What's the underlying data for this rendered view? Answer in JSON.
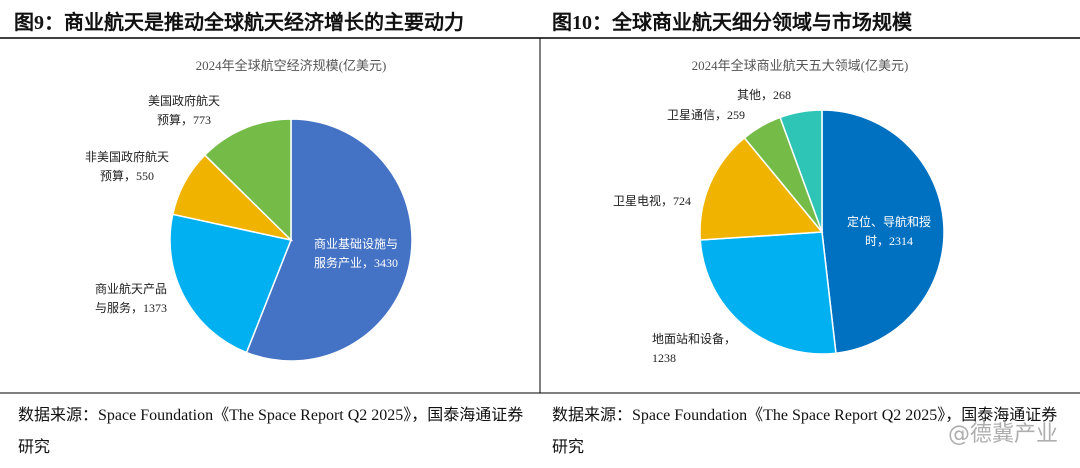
{
  "figures": [
    {
      "title": "图9：商业航天是推动全球航天经济增长的主要动力",
      "source": "数据来源：Space Foundation《The Space Report Q2 2025》，国泰海通证券研究"
    },
    {
      "title": "图10：全球商业航天细分领域与市场规模",
      "source": "数据来源：Space Foundation《The Space Report Q2 2025》，国泰海通证券研究"
    }
  ],
  "chart_data": [
    {
      "type": "pie",
      "title": "2024年全球航空经济规模(亿美元)",
      "label_separator": "，",
      "categories": [
        "商业基础设施与服务产业",
        "商业航天产品与服务",
        "非美国政府航天预算",
        "美国政府航天预算"
      ],
      "values": [
        3430,
        1373,
        550,
        773
      ],
      "colors": [
        "#4472c4",
        "#00b0f0",
        "#f0b400",
        "#74bb48"
      ]
    },
    {
      "type": "pie",
      "title": "2024年全球商业航天五大领域(亿美元)",
      "label_separator": "，",
      "categories": [
        "定位、导航和授时",
        "地面站和设备",
        "卫星电视",
        "卫星通信",
        "其他"
      ],
      "values": [
        2314,
        1238,
        724,
        259,
        268
      ],
      "colors": [
        "#0070c0",
        "#00b0f0",
        "#f0b400",
        "#74bb48",
        "#2ec4b6"
      ]
    }
  ],
  "watermark": "@德冀产业"
}
